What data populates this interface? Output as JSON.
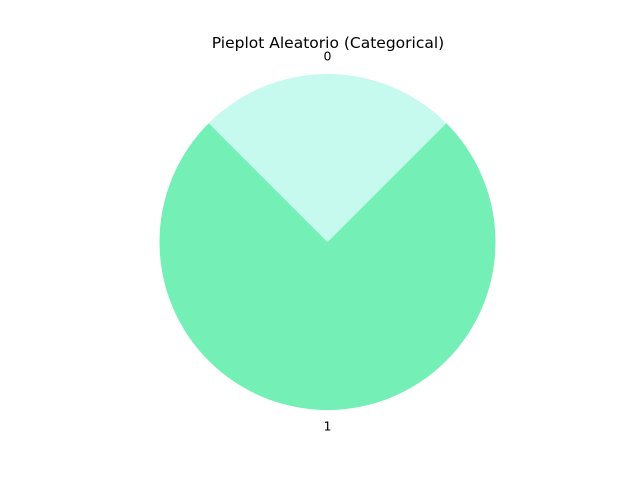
{
  "chart_data": {
    "type": "pie",
    "title": "Pieplot Aleatorio (Categorical)",
    "categories": [
      "0",
      "1"
    ],
    "values": [
      25,
      75
    ],
    "colors": [
      "#c6faee",
      "#74f0b6"
    ],
    "start_angle_deg": 45,
    "direction": "counterclockwise",
    "legend": "none"
  }
}
